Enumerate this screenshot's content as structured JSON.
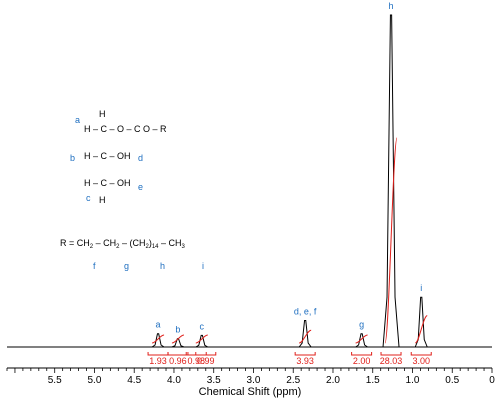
{
  "chart_data": {
    "type": "line",
    "xlabel": "Chemical Shift (ppm)",
    "x_ticks": [
      "5.5",
      "5.0",
      "4.5",
      "4.0",
      "3.5",
      "3.0",
      "2.5",
      "2.0",
      "1.5",
      "1.0",
      "0.5",
      "0"
    ],
    "xlim": [
      6.1,
      0.0
    ],
    "x_reversed": true,
    "peaks": [
      {
        "label": "a",
        "shift": 4.2,
        "height": 0.04
      },
      {
        "label": "b",
        "shift": 3.95,
        "height": 0.025
      },
      {
        "label": "c",
        "shift": 3.65,
        "height": 0.035
      },
      {
        "label": "d, e, f",
        "shift": 2.35,
        "height": 0.08
      },
      {
        "label": "g",
        "shift": 1.64,
        "height": 0.04
      },
      {
        "label": "h",
        "shift": 1.27,
        "height": 1.0
      },
      {
        "label": "i",
        "shift": 0.89,
        "height": 0.15
      }
    ],
    "integrals": [
      {
        "value": "1.93",
        "shift": 4.2
      },
      {
        "value": "0.96",
        "shift": 3.95
      },
      {
        "value": "0.98",
        "shift": 3.72
      },
      {
        "value": "0.99",
        "shift": 3.6
      },
      {
        "value": "3.93",
        "shift": 2.35
      },
      {
        "value": "2.00",
        "shift": 1.64
      },
      {
        "value": "28.03",
        "shift": 1.27
      },
      {
        "value": "3.00",
        "shift": 0.89
      }
    ],
    "colors": {
      "spectrum": "#000000",
      "integral": "#e0201b",
      "label": "#1f6fc0"
    }
  },
  "structure": {
    "line1": "H",
    "line2": "H – C – O – C O – R",
    "line3": "H – C – OH",
    "line4": "H – C – OH",
    "line5": "H",
    "labels": {
      "a": "a",
      "b": "b",
      "c": "c",
      "d": "d",
      "e": "e"
    }
  },
  "r_group": {
    "prefix": "R = CH",
    "sub1": "2",
    "mid1": " – CH",
    "sub2": "2",
    "mid2": " – (CH",
    "sub3": "2",
    "mid3": ")",
    "sub4": "14",
    "mid4": " – CH",
    "sub5": "3",
    "labels": {
      "f": "f",
      "g": "g",
      "h": "h",
      "i": "i"
    }
  }
}
